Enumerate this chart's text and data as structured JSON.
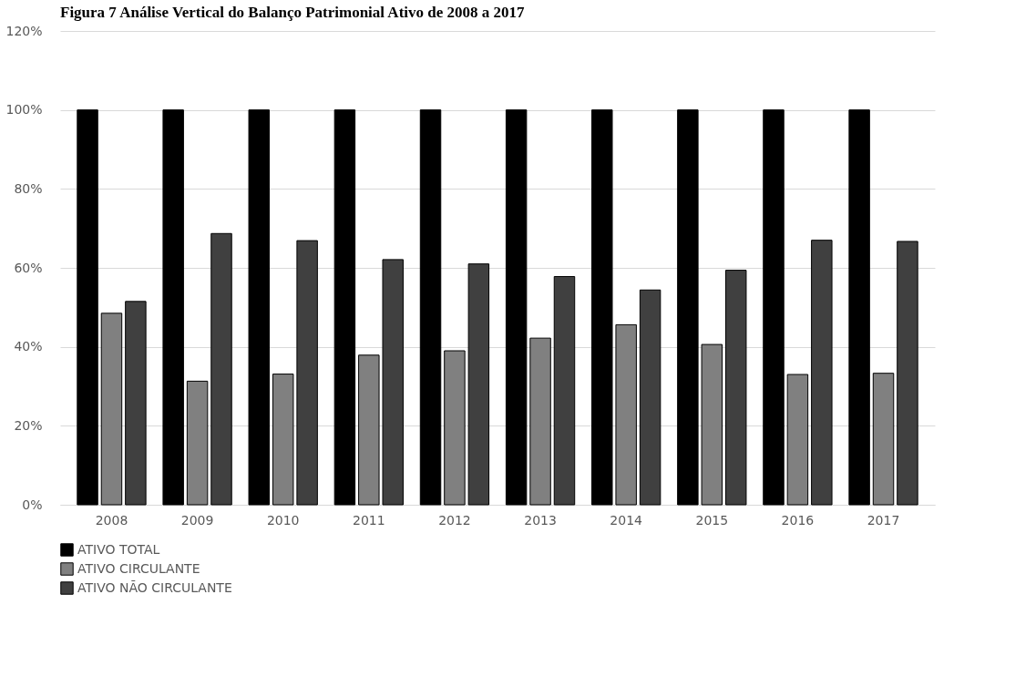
{
  "chart_data": {
    "type": "bar",
    "title": "Figura 7 Análise Vertical do Balanço Patrimonial Ativo de 2008 a 2017",
    "categories": [
      "2008",
      "2009",
      "2010",
      "2011",
      "2012",
      "2013",
      "2014",
      "2015",
      "2016",
      "2017"
    ],
    "series": [
      {
        "name": "ATIVO TOTAL",
        "color": "#000000",
        "values": [
          100,
          100,
          100,
          100,
          100,
          100,
          100,
          100,
          100,
          100
        ]
      },
      {
        "name": "ATIVO CIRCULANTE",
        "color": "#808080",
        "values": [
          48.5,
          31.3,
          33.1,
          37.9,
          39,
          42.2,
          45.6,
          40.6,
          33,
          33.3
        ]
      },
      {
        "name": "ATIVO NÃO CIRCULANTE",
        "color": "#404040",
        "values": [
          51.5,
          68.7,
          66.9,
          62.1,
          61,
          57.8,
          54.4,
          59.4,
          67,
          66.7
        ]
      }
    ],
    "ylim": [
      0,
      120
    ],
    "yticks": [
      {
        "value": 0,
        "label": "0%"
      },
      {
        "value": 20,
        "label": "20%"
      },
      {
        "value": 40,
        "label": "40%"
      },
      {
        "value": 60,
        "label": "60%"
      },
      {
        "value": 80,
        "label": "80%"
      },
      {
        "value": 100,
        "label": "100%"
      },
      {
        "value": 120,
        "label": "120%"
      }
    ],
    "grid": "y",
    "legend": "bottom"
  }
}
